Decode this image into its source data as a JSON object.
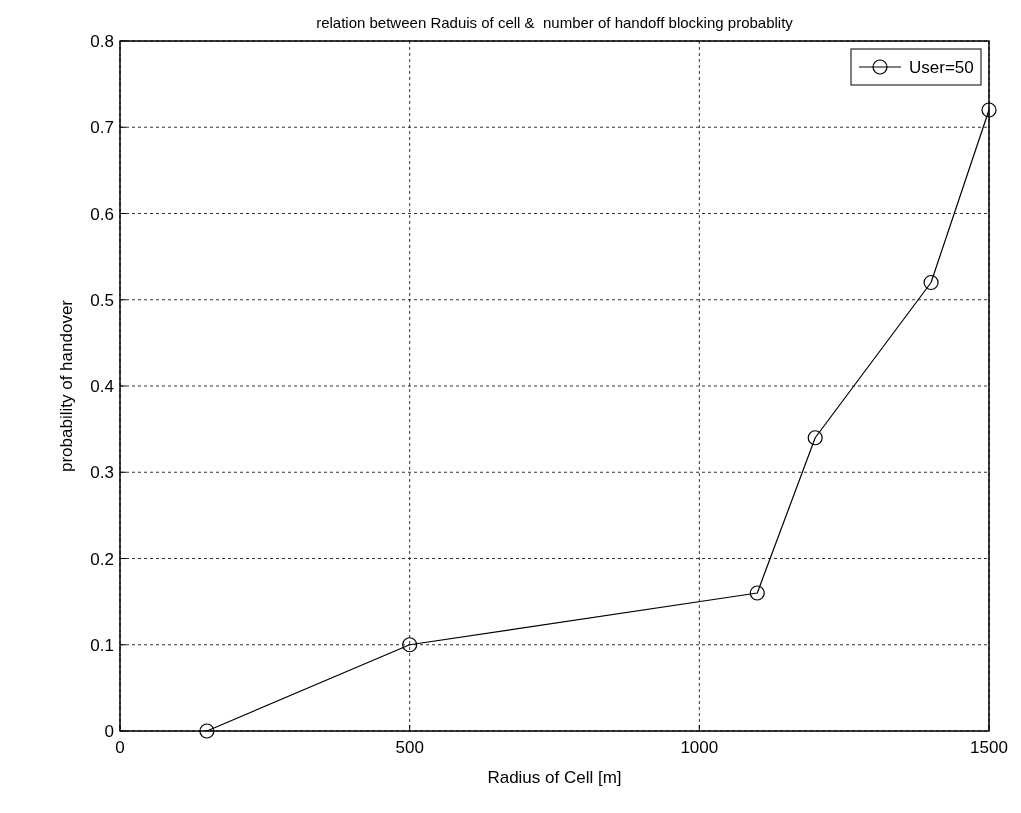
{
  "chart_data": {
    "type": "line",
    "title": "relation between Raduis of cell &  number of handoff blocking probablity",
    "xlabel": "Radius of Cell [m]",
    "ylabel": "probability of handover",
    "x": [
      150,
      500,
      1100,
      1200,
      1400,
      1500
    ],
    "series": [
      {
        "name": "User=50",
        "color": "#000000",
        "values": [
          0,
          0.1,
          0.16,
          0.34,
          0.52,
          0.72
        ]
      }
    ],
    "xlim": [
      0,
      1500
    ],
    "xticks": [
      0,
      500,
      1000,
      1500
    ],
    "ylim": [
      0,
      0.8
    ],
    "yticks": [
      0,
      0.1,
      0.2,
      0.3,
      0.4,
      0.5,
      0.6,
      0.7,
      0.8
    ],
    "grid": true,
    "legend": "top right",
    "marker": "circle",
    "line_style": "solid"
  }
}
